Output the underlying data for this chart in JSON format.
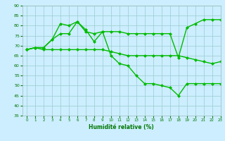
{
  "xlabel": "Humidité relative (%)",
  "bg_color": "#cceeff",
  "line_color": "#00bb00",
  "marker": "D",
  "marker_size": 2.0,
  "linewidth": 1.0,
  "ylim": [
    35,
    90
  ],
  "xlim": [
    -0.5,
    23
  ],
  "yticks": [
    35,
    40,
    45,
    50,
    55,
    60,
    65,
    70,
    75,
    80,
    85,
    90
  ],
  "xticks": [
    0,
    1,
    2,
    3,
    4,
    5,
    6,
    7,
    8,
    9,
    10,
    11,
    12,
    13,
    14,
    15,
    16,
    17,
    18,
    19,
    20,
    21,
    22,
    23
  ],
  "grid_color": "#99cccc",
  "series": [
    {
      "x": [
        0,
        1,
        2,
        3,
        4,
        5,
        6,
        7,
        8,
        9,
        10,
        11,
        12,
        13,
        14,
        15,
        16,
        17,
        18,
        19,
        20,
        21,
        22,
        23
      ],
      "y": [
        68,
        69,
        69,
        73,
        81,
        80,
        82,
        77,
        76,
        77,
        77,
        77,
        76,
        76,
        76,
        76,
        76,
        76,
        64,
        79,
        81,
        83,
        83,
        83
      ]
    },
    {
      "x": [
        0,
        1,
        2,
        3,
        4,
        5,
        6,
        7,
        8,
        9,
        10,
        11,
        12,
        13,
        14,
        15,
        16,
        17,
        18,
        19,
        20,
        21,
        22,
        23
      ],
      "y": [
        68,
        69,
        69,
        73,
        76,
        76,
        82,
        78,
        72,
        77,
        65,
        61,
        60,
        55,
        51,
        51,
        50,
        49,
        45,
        51,
        51,
        51,
        51,
        51
      ]
    },
    {
      "x": [
        0,
        1,
        2,
        3,
        4,
        5,
        6,
        7,
        8,
        9,
        10,
        11,
        12,
        13,
        14,
        15,
        16,
        17,
        18,
        19,
        20,
        21,
        22,
        23
      ],
      "y": [
        68,
        69,
        68,
        68,
        68,
        68,
        68,
        68,
        68,
        68,
        67,
        66,
        65,
        65,
        65,
        65,
        65,
        65,
        65,
        64,
        63,
        62,
        61,
        62
      ]
    }
  ]
}
